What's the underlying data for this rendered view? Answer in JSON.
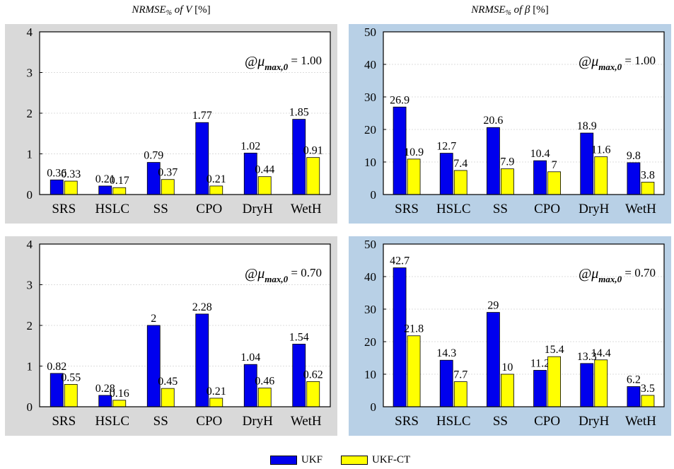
{
  "column_titles": [
    {
      "base": "NRMSE",
      "sub": "%",
      "rest": " of V",
      "unit": " [%]"
    },
    {
      "base": "NRMSE",
      "sub": "%",
      "rest": " of β",
      "unit": " [%]"
    }
  ],
  "colors": {
    "ukf": "#0000ee",
    "ukf_ct": "#ffff00",
    "panel_gray": "#d9d9d9",
    "panel_blue": "#b8d0e6"
  },
  "legend": [
    {
      "label": "UKF",
      "color": "#0000ee"
    },
    {
      "label": "UKF-CT",
      "color": "#ffff00"
    }
  ],
  "chart_data": [
    {
      "type": "bar",
      "categories": [
        "SRS",
        "HSLC",
        "SS",
        "CPO",
        "DryH",
        "WetH"
      ],
      "series": [
        {
          "name": "UKF",
          "values": [
            0.36,
            0.21,
            0.79,
            1.77,
            1.02,
            1.85
          ],
          "labels": [
            "0.36",
            "0.21",
            "0.79",
            "1.77",
            "1.02",
            "1.85"
          ]
        },
        {
          "name": "UKF-CT",
          "values": [
            0.33,
            0.17,
            0.37,
            0.21,
            0.44,
            0.91
          ],
          "labels": [
            "0.33",
            "0.17",
            "0.37",
            "0.21",
            "0.44",
            "0.91"
          ]
        }
      ],
      "ylim": [
        0,
        4
      ],
      "yticks": [
        0,
        1,
        2,
        3,
        4
      ],
      "annotation": {
        "prefix": "@μ",
        "sub": "max,0",
        "value": " = 1.00"
      },
      "background": "gray"
    },
    {
      "type": "bar",
      "categories": [
        "SRS",
        "HSLC",
        "SS",
        "CPO",
        "DryH",
        "WetH"
      ],
      "series": [
        {
          "name": "UKF",
          "values": [
            26.9,
            12.7,
            20.6,
            10.4,
            18.9,
            9.8
          ],
          "labels": [
            "26.9",
            "12.7",
            "20.6",
            "10.4",
            "18.9",
            "9.8"
          ]
        },
        {
          "name": "UKF-CT",
          "values": [
            10.9,
            7.4,
            7.9,
            7,
            11.6,
            3.8
          ],
          "labels": [
            "10.9",
            "7.4",
            "7.9",
            "7",
            "11.6",
            "3.8"
          ]
        }
      ],
      "ylim": [
        0,
        50
      ],
      "yticks": [
        0,
        10,
        20,
        30,
        40,
        50
      ],
      "annotation": {
        "prefix": "@μ",
        "sub": "max,0",
        "value": " = 1.00"
      },
      "background": "blue"
    },
    {
      "type": "bar",
      "categories": [
        "SRS",
        "HSLC",
        "SS",
        "CPO",
        "DryH",
        "WetH"
      ],
      "series": [
        {
          "name": "UKF",
          "values": [
            0.82,
            0.28,
            2,
            2.28,
            1.04,
            1.54
          ],
          "labels": [
            "0.82",
            "0.28",
            "2",
            "2.28",
            "1.04",
            "1.54"
          ]
        },
        {
          "name": "UKF-CT",
          "values": [
            0.55,
            0.16,
            0.45,
            0.21,
            0.46,
            0.62
          ],
          "labels": [
            "0.55",
            "0.16",
            "0.45",
            "0.21",
            "0.46",
            "0.62"
          ]
        }
      ],
      "ylim": [
        0,
        4
      ],
      "yticks": [
        0,
        1,
        2,
        3,
        4
      ],
      "annotation": {
        "prefix": "@μ",
        "sub": "max,0",
        "value": " = 0.70"
      },
      "background": "gray"
    },
    {
      "type": "bar",
      "categories": [
        "SRS",
        "HSLC",
        "SS",
        "CPO",
        "DryH",
        "WetH"
      ],
      "series": [
        {
          "name": "UKF",
          "values": [
            42.7,
            14.3,
            29,
            11.2,
            13.3,
            6.2
          ],
          "labels": [
            "42.7",
            "14.3",
            "29",
            "11.2",
            "13.3",
            "6.2"
          ]
        },
        {
          "name": "UKF-CT",
          "values": [
            21.8,
            7.7,
            10,
            15.4,
            14.4,
            3.5
          ],
          "labels": [
            "21.8",
            "7.7",
            "10",
            "15.4",
            "14.4",
            "3.5"
          ]
        }
      ],
      "ylim": [
        0,
        50
      ],
      "yticks": [
        0,
        10,
        20,
        30,
        40,
        50
      ],
      "annotation": {
        "prefix": "@μ",
        "sub": "max,0",
        "value": " = 0.70"
      },
      "background": "blue"
    }
  ]
}
